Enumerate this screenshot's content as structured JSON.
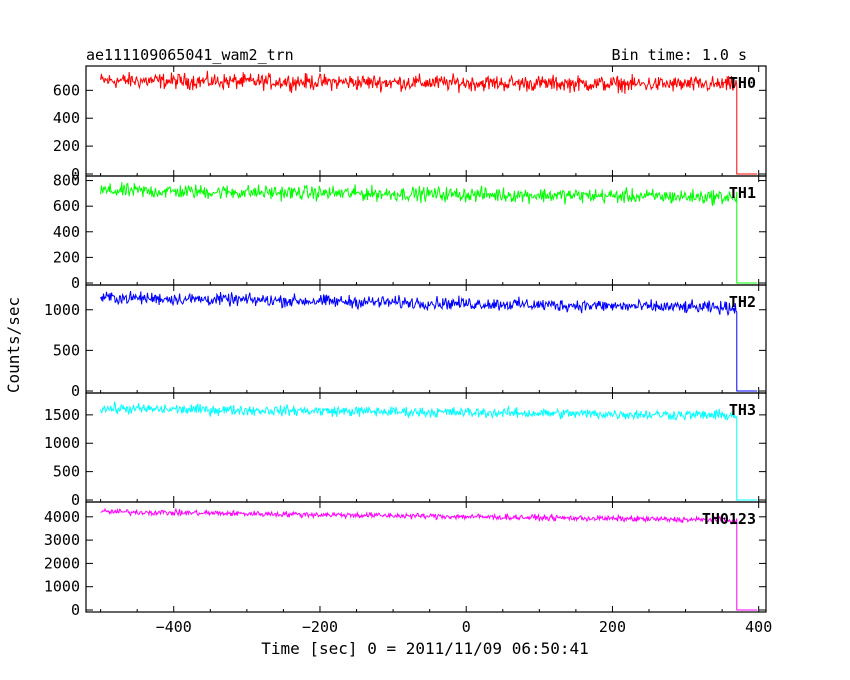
{
  "title": "ae111109065041_wam2_trn",
  "bin_time_label": "Bin time: 1.0 s",
  "xlabel": "Time [sec] 0 = 2011/11/09 06:50:41",
  "ylabel": "Counts/sec",
  "chart_data": {
    "type": "line",
    "title": "ae111109065041_wam2_trn",
    "xlabel": "Time [sec] 0 = 2011/11/09 06:50:41",
    "ylabel": "Counts/sec",
    "xlim": [
      -520,
      410
    ],
    "x_ticks": [
      -400,
      -200,
      0,
      200,
      400
    ],
    "x_data_range": [
      -500,
      370
    ],
    "drop_time": 370,
    "post_drop_level": 0,
    "grid": false,
    "panels": [
      {
        "name": "TH0",
        "color": "#ff0000",
        "ylim": [
          0,
          760
        ],
        "y_ticks": [
          0,
          200,
          400,
          600
        ],
        "level_start": 670,
        "level_end": 640,
        "noise": 28,
        "values_start_end": [
          670,
          640
        ]
      },
      {
        "name": "TH1",
        "color": "#00ff00",
        "ylim": [
          0,
          820
        ],
        "y_ticks": [
          0,
          200,
          400,
          600,
          800
        ],
        "level_start": 720,
        "level_end": 670,
        "noise": 28,
        "values_start_end": [
          720,
          670
        ]
      },
      {
        "name": "TH2",
        "color": "#0000ff",
        "ylim": [
          0,
          1280
        ],
        "y_ticks": [
          0,
          500,
          1000
        ],
        "level_start": 1150,
        "level_end": 1020,
        "noise": 38,
        "values_start_end": [
          1150,
          1020
        ]
      },
      {
        "name": "TH3",
        "color": "#00ffff",
        "ylim": [
          0,
          1850
        ],
        "y_ticks": [
          0,
          500,
          1000,
          1500
        ],
        "level_start": 1610,
        "level_end": 1490,
        "noise": 45,
        "values_start_end": [
          1610,
          1490
        ]
      },
      {
        "name": "TH0123",
        "color": "#ff00ff",
        "ylim": [
          0,
          4550
        ],
        "y_ticks": [
          0,
          1000,
          2000,
          3000,
          4000
        ],
        "level_start": 4220,
        "level_end": 3850,
        "noise": 60,
        "values_start_end": [
          4220,
          3850
        ]
      }
    ]
  }
}
